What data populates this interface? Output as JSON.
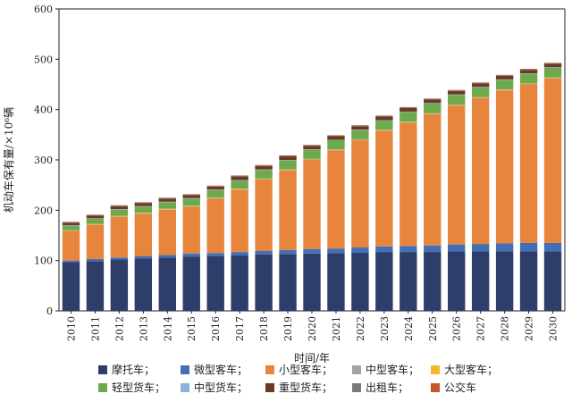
{
  "chart_data": {
    "type": "bar",
    "stacked": true,
    "xlabel": "时间/年",
    "ylabel": "机动车保有量/×10⁶辆",
    "ylim": [
      0,
      600
    ],
    "yticks": [
      "0",
      "100",
      "200",
      "300",
      "400",
      "500",
      "600"
    ],
    "categories": [
      "2010",
      "2011",
      "2012",
      "2013",
      "2014",
      "2015",
      "2016",
      "2017",
      "2018",
      "2019",
      "2020",
      "2021",
      "2022",
      "2023",
      "2024",
      "2025",
      "2026",
      "2027",
      "2028",
      "2029",
      "2030"
    ],
    "legend_position": "bottom",
    "legend_labels": [
      "摩托车；",
      "微型客车；",
      "小型客车；",
      "中型客车；",
      "大型客车；",
      "轻型货车；",
      "中型货车；",
      "重型货车；",
      "出租车；",
      "公交车"
    ],
    "series": [
      {
        "name": "摩托车",
        "color": "#2e3d69",
        "values": [
          97,
          99,
          102,
          104,
          106,
          108,
          109,
          110,
          112,
          113,
          114,
          115,
          116,
          117,
          117,
          117,
          118,
          118,
          118,
          118,
          118
        ]
      },
      {
        "name": "微型客车",
        "color": "#4270b7",
        "values": [
          3,
          4,
          4,
          5,
          5,
          6,
          6,
          7,
          7,
          8,
          9,
          9,
          10,
          11,
          12,
          13,
          14,
          15,
          16,
          17,
          17
        ]
      },
      {
        "name": "小型客车",
        "color": "#e8853d",
        "values": [
          58,
          68,
          81,
          84,
          90,
          93,
          108,
          124,
          142,
          158,
          177,
          195,
          213,
          230,
          245,
          261,
          276,
          290,
          304,
          315,
          327
        ]
      },
      {
        "name": "中型客车",
        "color": "#a3a3a3",
        "values": [
          1,
          1,
          1,
          1,
          1,
          1,
          1,
          1,
          1,
          1,
          1,
          1,
          1,
          1,
          1,
          1,
          1,
          1,
          1,
          1,
          1
        ]
      },
      {
        "name": "大型客车",
        "color": "#f5b62a",
        "values": [
          1,
          1,
          1,
          1,
          1,
          1,
          1,
          1,
          1,
          1,
          1,
          1,
          1,
          1,
          1,
          1,
          1,
          1,
          1,
          1,
          1
        ]
      },
      {
        "name": "轻型货车",
        "color": "#6eaa4c",
        "values": [
          9,
          10,
          12,
          12,
          13,
          14,
          15,
          16,
          17,
          18,
          18,
          18,
          18,
          18,
          19,
          19,
          19,
          19,
          19,
          19,
          19
        ]
      },
      {
        "name": "中型货车",
        "color": "#8ab4dc",
        "values": [
          1,
          1,
          1,
          1,
          1,
          1,
          1,
          1,
          1,
          1,
          1,
          1,
          1,
          1,
          1,
          1,
          1,
          1,
          1,
          1,
          1
        ]
      },
      {
        "name": "重型货车",
        "color": "#6b3a25",
        "values": [
          5,
          5,
          6,
          6,
          6,
          6,
          6,
          7,
          7,
          7,
          7,
          7,
          7,
          7,
          7,
          7,
          7,
          7,
          7,
          7,
          7
        ]
      },
      {
        "name": "出租车",
        "color": "#7a7a7a",
        "values": [
          1,
          1,
          1,
          1,
          1,
          1,
          1,
          1,
          1,
          1,
          1,
          1,
          1,
          1,
          1,
          1,
          1,
          1,
          1,
          1,
          1
        ]
      },
      {
        "name": "公交车",
        "color": "#c9552c",
        "values": [
          1,
          1,
          1,
          1,
          1,
          1,
          1,
          1,
          1,
          1,
          1,
          1,
          1,
          1,
          1,
          1,
          1,
          1,
          1,
          1,
          1
        ]
      }
    ]
  }
}
